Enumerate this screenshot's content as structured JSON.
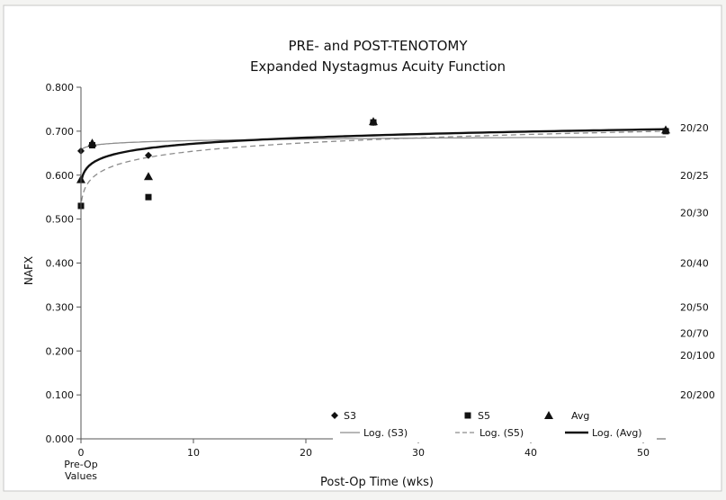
{
  "chart_data": {
    "type": "scatter",
    "title": "PRE- and POST-TENOTOMY",
    "subtitle": "Expanded Nystagmus Acuity Function",
    "xlabel": "Post-Op Time (wks)",
    "ylabel": "NAFX",
    "xlim": [
      0,
      52
    ],
    "ylim": [
      0,
      0.8
    ],
    "x_ticks": [
      {
        "value": 0,
        "label": "0"
      },
      {
        "value": 10,
        "label": "10"
      },
      {
        "value": 20,
        "label": "20"
      },
      {
        "value": 30,
        "label": "30"
      },
      {
        "value": 40,
        "label": "40"
      },
      {
        "value": 50,
        "label": "50"
      }
    ],
    "x_note": [
      "Pre-Op",
      "Values"
    ],
    "y_ticks": [
      {
        "value": 0,
        "label": "0.000"
      },
      {
        "value": 0.1,
        "label": "0.100"
      },
      {
        "value": 0.2,
        "label": "0.200"
      },
      {
        "value": 0.3,
        "label": "0.300"
      },
      {
        "value": 0.4,
        "label": "0.400"
      },
      {
        "value": 0.5,
        "label": "0.500"
      },
      {
        "value": 0.6,
        "label": "0.600"
      },
      {
        "value": 0.7,
        "label": "0.700"
      },
      {
        "value": 0.8,
        "label": "0.800"
      }
    ],
    "right_axis_labels": [
      {
        "value": 0.708,
        "label": "20/20"
      },
      {
        "value": 0.6,
        "label": "20/25"
      },
      {
        "value": 0.515,
        "label": "20/30"
      },
      {
        "value": 0.4,
        "label": "20/40"
      },
      {
        "value": 0.3,
        "label": "20/50"
      },
      {
        "value": 0.24,
        "label": "20/70"
      },
      {
        "value": 0.19,
        "label": "20/100"
      },
      {
        "value": 0.1,
        "label": "20/200"
      }
    ],
    "grid": false,
    "legend_position": "bottom-right",
    "series": [
      {
        "name": "S3",
        "marker": "diamond",
        "points": [
          {
            "x": 0,
            "y": 0.655
          },
          {
            "x": 1,
            "y": 0.67
          },
          {
            "x": 6,
            "y": 0.645
          },
          {
            "x": 26,
            "y": 0.72
          },
          {
            "x": 52,
            "y": 0.702
          }
        ]
      },
      {
        "name": "S5",
        "marker": "square",
        "points": [
          {
            "x": 0,
            "y": 0.53
          },
          {
            "x": 1,
            "y": 0.668
          },
          {
            "x": 6,
            "y": 0.55
          },
          {
            "x": 26,
            "y": 0.72
          },
          {
            "x": 52,
            "y": 0.7
          }
        ]
      },
      {
        "name": "Avg",
        "marker": "triangle",
        "points": [
          {
            "x": 0,
            "y": 0.59
          },
          {
            "x": 1,
            "y": 0.673
          },
          {
            "x": 6,
            "y": 0.597
          },
          {
            "x": 26,
            "y": 0.722
          },
          {
            "x": 52,
            "y": 0.703
          }
        ]
      }
    ],
    "trendlines": [
      {
        "name": "Log. (S3)",
        "style": "thin-solid",
        "color": "#8c8c8c",
        "points": [
          [
            0.05,
            0.658
          ],
          [
            1,
            0.668
          ],
          [
            6,
            0.674
          ],
          [
            52,
            0.688
          ]
        ]
      },
      {
        "name": "Log. (S5)",
        "style": "dashed",
        "color": "#8c8c8c",
        "points": [
          [
            0.05,
            0.535
          ],
          [
            1,
            0.6
          ],
          [
            6,
            0.645
          ],
          [
            52,
            0.695
          ]
        ]
      },
      {
        "name": "Log. (Avg)",
        "style": "thick-solid",
        "color": "#111111",
        "points": [
          [
            0.05,
            0.585
          ],
          [
            1,
            0.634
          ],
          [
            6,
            0.66
          ],
          [
            52,
            0.703
          ]
        ]
      }
    ]
  }
}
